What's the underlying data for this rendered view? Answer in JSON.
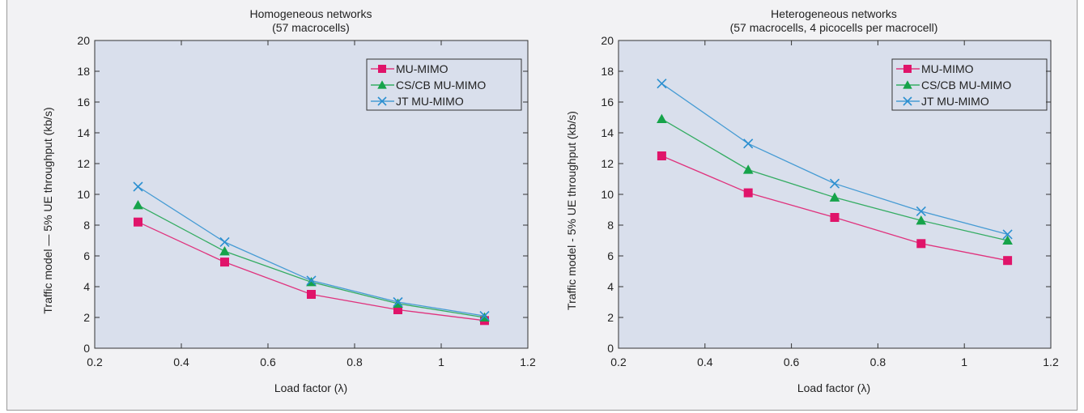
{
  "colors": {
    "plot_bg": "#d9dfec",
    "mu_mimo": "#e0146a",
    "cscb": "#16a34a",
    "jt": "#2b8fd0"
  },
  "chart_data": [
    {
      "type": "line",
      "title": "Homogeneous networks",
      "subtitle": "(57 macrocells)",
      "xlabel": "Load factor (λ)",
      "ylabel": "Traffic model — 5% UE throughput (kb/s)",
      "xlim": [
        0.2,
        1.2
      ],
      "ylim": [
        0,
        20
      ],
      "xticks": [
        0.2,
        0.4,
        0.6,
        0.8,
        1,
        1.2
      ],
      "xtick_labels": [
        "0.2",
        "0.4",
        "0.6",
        "0.8",
        "1",
        "1.2"
      ],
      "yticks": [
        0,
        2,
        4,
        6,
        8,
        10,
        12,
        14,
        16,
        18,
        20
      ],
      "ytick_labels": [
        "0",
        "2",
        "4",
        "6",
        "8",
        "10",
        "12",
        "14",
        "16",
        "18",
        "20"
      ],
      "grid": false,
      "legend_position": "top-right",
      "x": [
        0.3,
        0.5,
        0.7,
        0.9,
        1.1
      ],
      "series": [
        {
          "name": "MU-MIMO",
          "values": [
            8.2,
            5.6,
            3.5,
            2.5,
            1.8
          ],
          "marker": "square",
          "color": "#e0146a"
        },
        {
          "name": "CS/CB MU-MIMO",
          "values": [
            9.3,
            6.3,
            4.3,
            2.9,
            2.0
          ],
          "marker": "triangle",
          "color": "#16a34a"
        },
        {
          "name": "JT MU-MIMO",
          "values": [
            10.5,
            6.9,
            4.4,
            3.0,
            2.1
          ],
          "marker": "x",
          "color": "#2b8fd0"
        }
      ]
    },
    {
      "type": "line",
      "title": "Heterogeneous networks",
      "subtitle": "(57 macrocells, 4 picocells per macrocell)",
      "xlabel": "Load factor (λ)",
      "ylabel": "Traffic model - 5% UE throughput (kb/s)",
      "xlim": [
        0.2,
        1.2
      ],
      "ylim": [
        0,
        20
      ],
      "xticks": [
        0.2,
        0.4,
        0.6,
        0.8,
        1,
        1.2
      ],
      "xtick_labels": [
        "0.2",
        "0.4",
        "0.6",
        "0.8",
        "1",
        "1.2"
      ],
      "yticks": [
        0,
        2,
        4,
        6,
        8,
        10,
        12,
        14,
        16,
        18,
        20
      ],
      "ytick_labels": [
        "0",
        "2",
        "4",
        "6",
        "8",
        "10",
        "12",
        "14",
        "16",
        "18",
        "20"
      ],
      "grid": false,
      "legend_position": "top-right",
      "x": [
        0.3,
        0.5,
        0.7,
        0.9,
        1.1
      ],
      "series": [
        {
          "name": "MU-MIMO",
          "values": [
            12.5,
            10.1,
            8.5,
            6.8,
            5.7
          ],
          "marker": "square",
          "color": "#e0146a"
        },
        {
          "name": "CS/CB MU-MIMO",
          "values": [
            14.9,
            11.6,
            9.8,
            8.3,
            7.0
          ],
          "marker": "triangle",
          "color": "#16a34a"
        },
        {
          "name": "JT MU-MIMO",
          "values": [
            17.2,
            13.3,
            10.7,
            8.9,
            7.4
          ],
          "marker": "x",
          "color": "#2b8fd0"
        }
      ]
    }
  ]
}
